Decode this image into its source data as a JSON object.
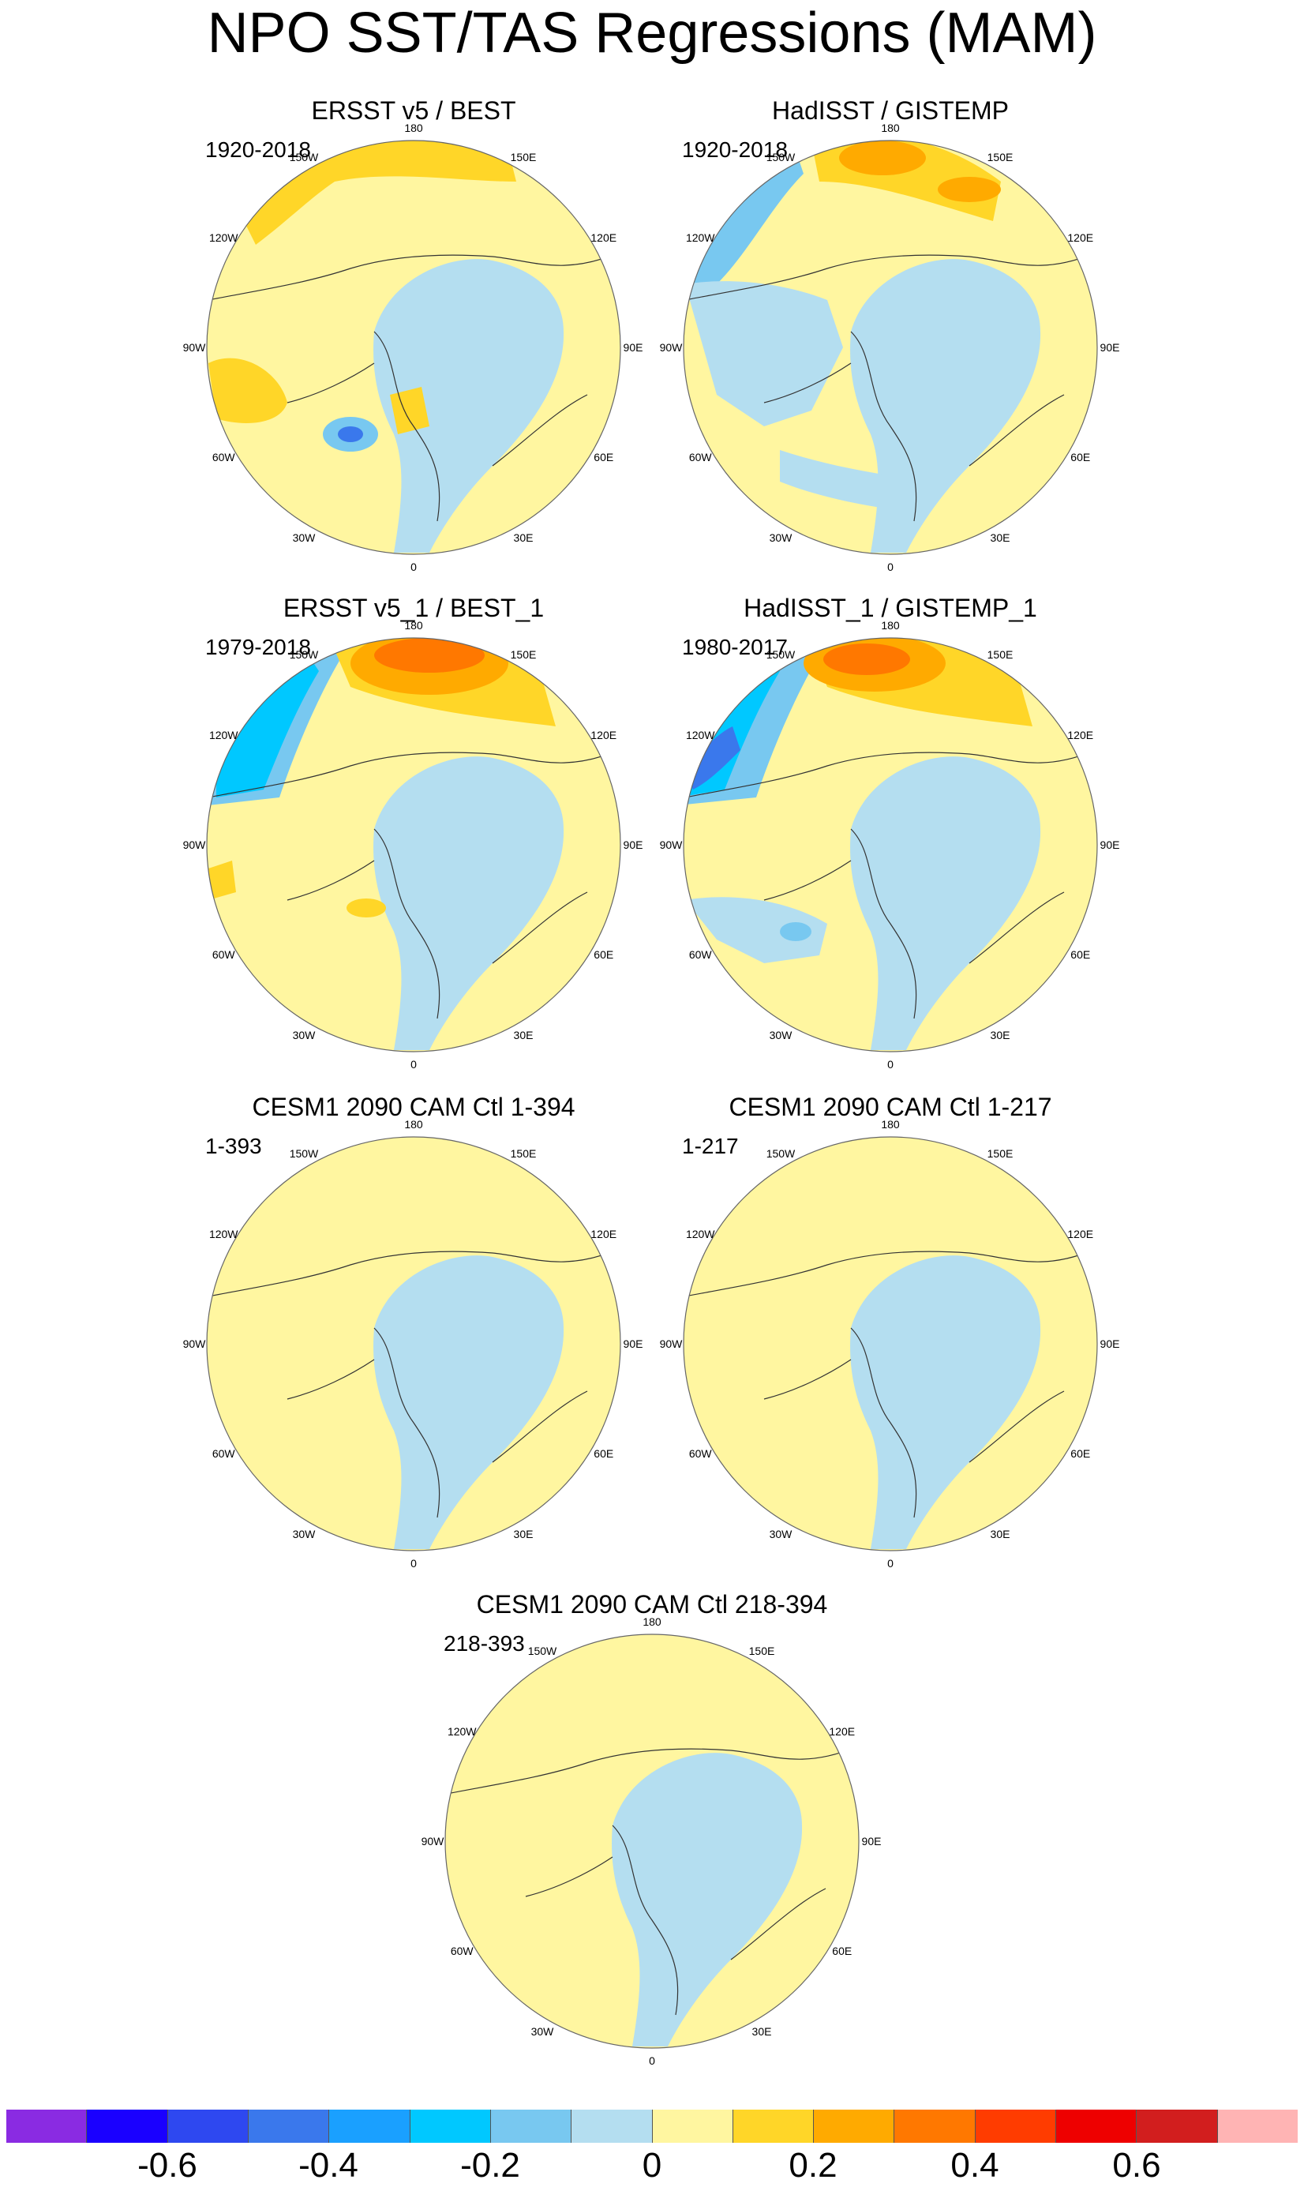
{
  "figure_title": "NPO SST/TAS Regressions (MAM)",
  "lon_labels": [
    "180",
    "150E",
    "120E",
    "90E",
    "60E",
    "30E",
    "0",
    "30W",
    "60W",
    "90W",
    "120W",
    "150W"
  ],
  "colorbar": {
    "colors": [
      "#8a2be2",
      "#1a00ff",
      "#2e48f0",
      "#3a78ec",
      "#1aa0ff",
      "#00c8ff",
      "#78c8f0",
      "#b4def0",
      "#fff6a0",
      "#ffd628",
      "#ffaa00",
      "#ff7800",
      "#ff3c00",
      "#ee0000",
      "#d21e1e",
      "#ffb4b4"
    ],
    "tick_labels": [
      "-0.6",
      "-0.4",
      "-0.2",
      "0",
      "0.2",
      "0.4",
      "0.6"
    ]
  },
  "panels": [
    {
      "title": "ERSST v5 / BEST",
      "period": "1920-2018"
    },
    {
      "title": "HadISST / GISTEMP",
      "period": "1920-2018"
    },
    {
      "title": "ERSST v5_1 / BEST_1",
      "period": "1979-2018"
    },
    {
      "title": "HadISST_1 / GISTEMP_1",
      "period": "1980-2017"
    },
    {
      "title": "CESM1 2090 CAM Ctl 1-394",
      "period": "1-393"
    },
    {
      "title": "CESM1 2090 CAM Ctl 1-217",
      "period": "1-217"
    },
    {
      "title": "CESM1 2090 CAM Ctl 218-394",
      "period": "218-393"
    }
  ]
}
